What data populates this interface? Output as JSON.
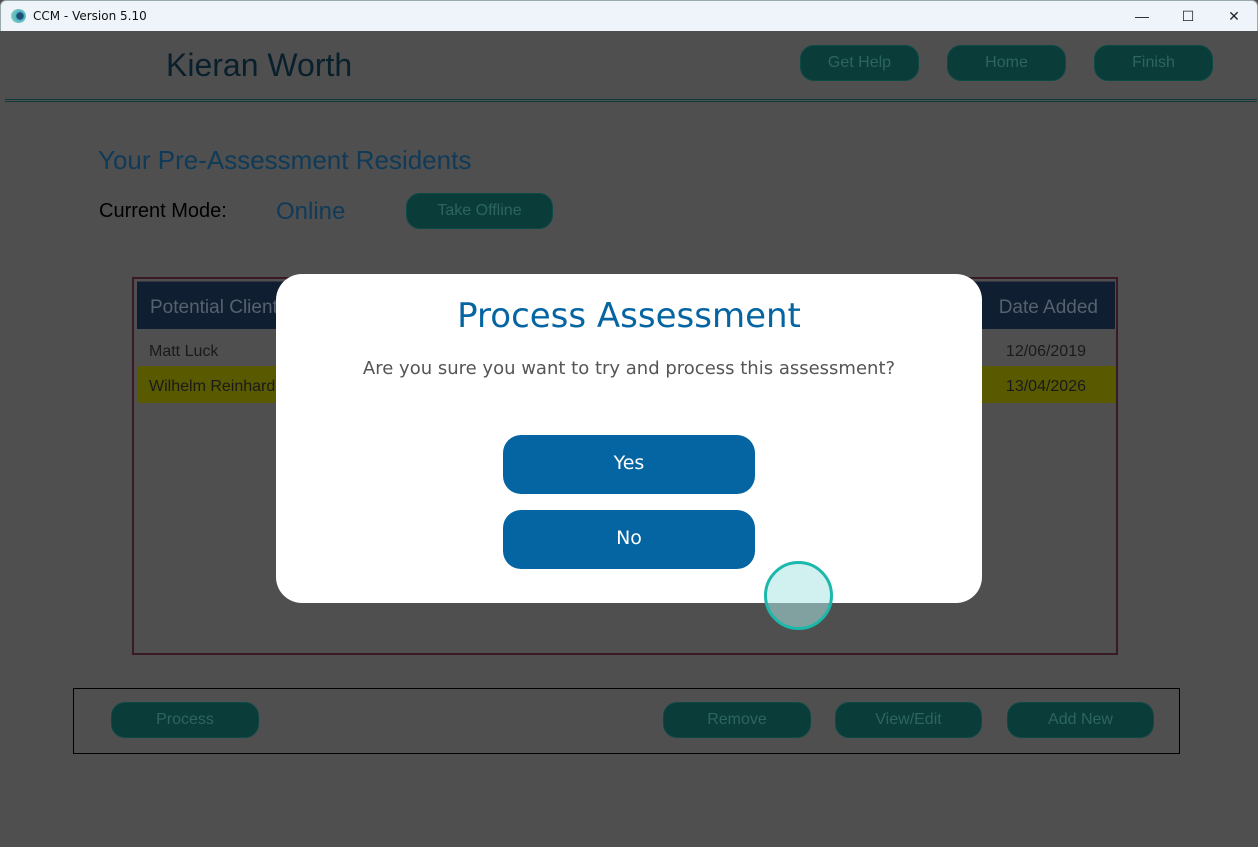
{
  "window": {
    "title": "CCM - Version 5.10",
    "minimize": "—",
    "maximize": "☐",
    "close": "✕"
  },
  "header": {
    "user_name": "Kieran Worth",
    "buttons": [
      "Get Help",
      "Home",
      "Finish"
    ]
  },
  "page": {
    "title": "Your Pre-Assessment Residents",
    "mode_label": "Current Mode:",
    "mode_value": "Online",
    "toggle_mode_button": "Take Offline"
  },
  "table": {
    "columns": [
      "Potential Client",
      "Date Added"
    ],
    "rows": [
      {
        "name": "Matt Luck",
        "date": "12/06/2019",
        "highlighted": false
      },
      {
        "name": "Wilhelm Reinhard",
        "date": "13/04/2026",
        "highlighted": true
      }
    ]
  },
  "actions": {
    "process": "Process",
    "remove": "Remove",
    "view_edit": "View/Edit",
    "add_new": "Add New"
  },
  "dialog": {
    "title": "Process Assessment",
    "message": "Are you sure you want to try and process this assessment?",
    "yes": "Yes",
    "no": "No"
  },
  "colors": {
    "accent": "#0565a2",
    "teal": "#1cb8ac",
    "highlight_row": "#595900"
  }
}
